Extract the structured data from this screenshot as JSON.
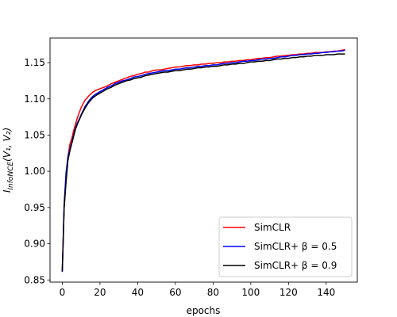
{
  "chart_data": {
    "type": "line",
    "title": "",
    "xlabel": "epochs",
    "ylabel_main": "I",
    "ylabel_sub": "InfoNCE",
    "ylabel_args": "(V₁, V₂)",
    "xlim": [
      -6.5,
      156.5
    ],
    "ylim": [
      0.847,
      1.184
    ],
    "xticks": [
      0,
      20,
      40,
      60,
      80,
      100,
      120,
      140
    ],
    "xtick_labels": [
      "0",
      "20",
      "40",
      "60",
      "80",
      "100",
      "120",
      "140"
    ],
    "yticks": [
      0.85,
      0.9,
      0.95,
      1.0,
      1.05,
      1.1,
      1.15
    ],
    "ytick_labels": [
      "0.85",
      "0.90",
      "0.95",
      "1.00",
      "1.05",
      "1.10",
      "1.15"
    ],
    "grid": false,
    "legend_position": "lower-right",
    "x": [
      0,
      1,
      2,
      3,
      4,
      5,
      6,
      7,
      8,
      9,
      10,
      12,
      14,
      16,
      18,
      20,
      22,
      24,
      26,
      28,
      30,
      32,
      34,
      36,
      38,
      40,
      42,
      44,
      46,
      48,
      50,
      52,
      54,
      56,
      58,
      60,
      62,
      64,
      66,
      68,
      70,
      72,
      74,
      76,
      78,
      80,
      82,
      84,
      86,
      88,
      90,
      92,
      94,
      96,
      98,
      100,
      102,
      104,
      106,
      108,
      110,
      112,
      114,
      116,
      118,
      120,
      122,
      124,
      126,
      128,
      130,
      132,
      134,
      136,
      138,
      140,
      142,
      144,
      146,
      148,
      150
    ],
    "series": [
      {
        "name": "SimCLR",
        "color": "#ff0000",
        "values": [
          0.862,
          0.95,
          0.99,
          1.02,
          1.037,
          1.045,
          1.056,
          1.065,
          1.074,
          1.081,
          1.088,
          1.098,
          1.104,
          1.109,
          1.112,
          1.114,
          1.116,
          1.118,
          1.121,
          1.123,
          1.125,
          1.127,
          1.129,
          1.131,
          1.132,
          1.134,
          1.135,
          1.137,
          1.137,
          1.139,
          1.14,
          1.14,
          1.141,
          1.142,
          1.143,
          1.144,
          1.144,
          1.145,
          1.146,
          1.146,
          1.147,
          1.147,
          1.148,
          1.148,
          1.149,
          1.149,
          1.15,
          1.15,
          1.151,
          1.151,
          1.152,
          1.152,
          1.153,
          1.153,
          1.154,
          1.154,
          1.155,
          1.156,
          1.156,
          1.157,
          1.157,
          1.158,
          1.159,
          1.159,
          1.16,
          1.16,
          1.161,
          1.161,
          1.162,
          1.162,
          1.163,
          1.163,
          1.164,
          1.164,
          1.164,
          1.165,
          1.165,
          1.166,
          1.166,
          1.167,
          1.168
        ]
      },
      {
        "name": "SimCLR+ β = 0.5",
        "color": "#0000ff",
        "values": [
          0.861,
          0.955,
          0.998,
          1.02,
          1.03,
          1.04,
          1.05,
          1.06,
          1.067,
          1.072,
          1.078,
          1.089,
          1.097,
          1.103,
          1.107,
          1.11,
          1.113,
          1.116,
          1.118,
          1.121,
          1.123,
          1.125,
          1.126,
          1.128,
          1.13,
          1.131,
          1.132,
          1.134,
          1.135,
          1.136,
          1.137,
          1.138,
          1.139,
          1.139,
          1.14,
          1.141,
          1.141,
          1.142,
          1.143,
          1.143,
          1.144,
          1.145,
          1.145,
          1.146,
          1.146,
          1.147,
          1.147,
          1.148,
          1.149,
          1.149,
          1.15,
          1.15,
          1.151,
          1.152,
          1.152,
          1.153,
          1.153,
          1.154,
          1.155,
          1.155,
          1.156,
          1.156,
          1.157,
          1.158,
          1.158,
          1.159,
          1.16,
          1.16,
          1.161,
          1.161,
          1.162,
          1.162,
          1.163,
          1.163,
          1.164,
          1.164,
          1.165,
          1.165,
          1.166,
          1.166,
          1.167
        ]
      },
      {
        "name": "SimCLR+ β = 0.9",
        "color": "#000000",
        "values": [
          0.862,
          0.95,
          0.985,
          1.015,
          1.028,
          1.038,
          1.048,
          1.058,
          1.065,
          1.071,
          1.077,
          1.087,
          1.095,
          1.101,
          1.105,
          1.108,
          1.111,
          1.114,
          1.116,
          1.119,
          1.121,
          1.123,
          1.125,
          1.126,
          1.128,
          1.129,
          1.13,
          1.132,
          1.133,
          1.134,
          1.135,
          1.136,
          1.137,
          1.137,
          1.138,
          1.139,
          1.139,
          1.14,
          1.141,
          1.141,
          1.142,
          1.143,
          1.143,
          1.144,
          1.144,
          1.145,
          1.145,
          1.146,
          1.147,
          1.147,
          1.148,
          1.148,
          1.149,
          1.149,
          1.15,
          1.151,
          1.151,
          1.152,
          1.152,
          1.153,
          1.153,
          1.154,
          1.155,
          1.155,
          1.156,
          1.156,
          1.157,
          1.157,
          1.158,
          1.158,
          1.159,
          1.159,
          1.16,
          1.16,
          1.16,
          1.161,
          1.161,
          1.161,
          1.162,
          1.162,
          1.162
        ]
      }
    ]
  }
}
